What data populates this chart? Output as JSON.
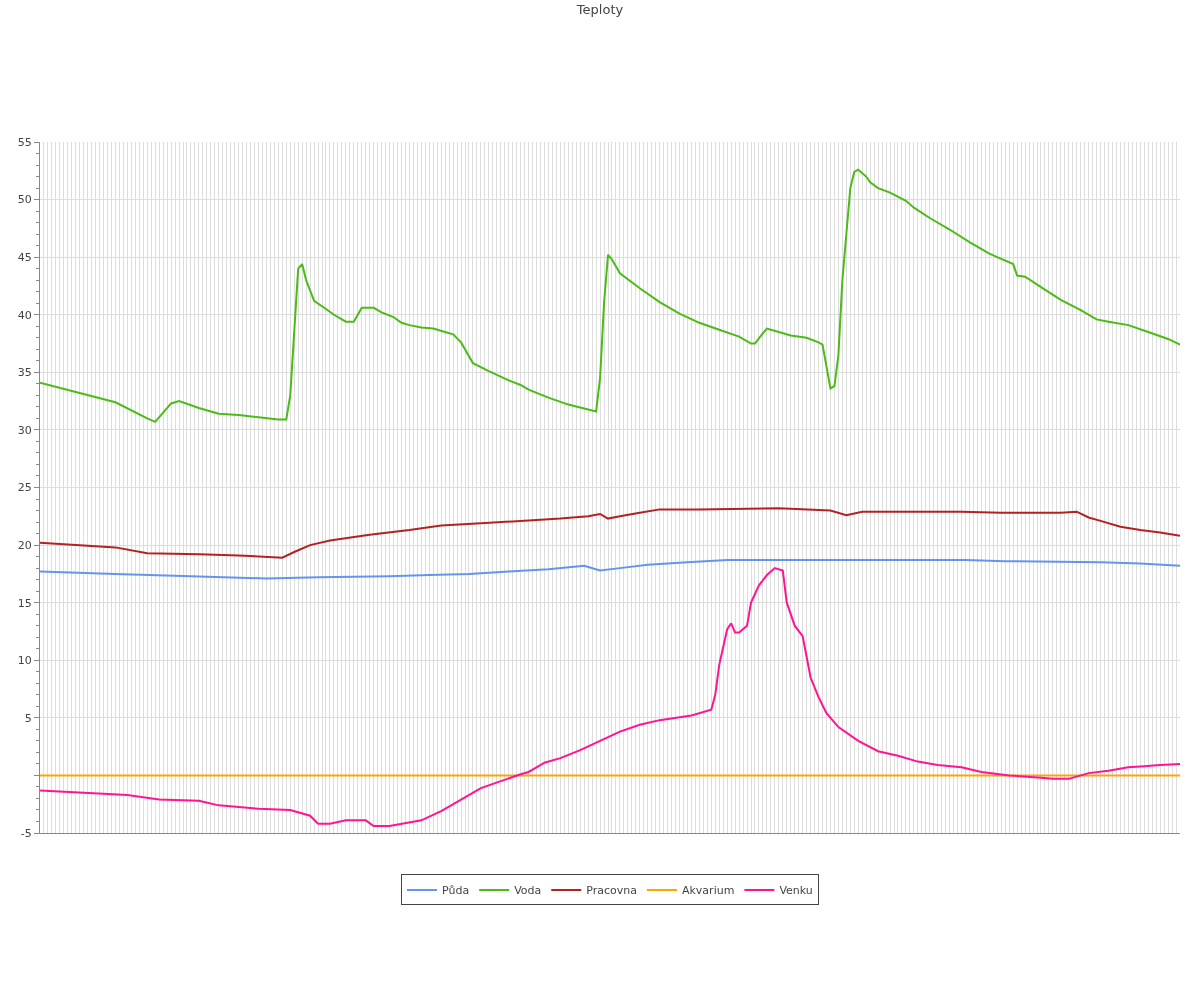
{
  "chart_data": {
    "type": "line",
    "title": "Teploty",
    "categories": [
      null,
      null,
      null,
      null,
      null,
      null,
      null,
      null,
      null,
      null,
      null,
      null,
      null,
      null,
      null,
      null,
      null,
      null,
      null,
      null,
      null,
      null,
      null,
      null,
      null,
      null,
      null,
      null,
      null,
      null,
      null,
      null,
      null,
      null,
      null,
      null,
      null,
      null,
      null,
      null,
      null,
      null,
      null,
      null,
      null,
      null,
      null,
      null,
      null,
      null,
      null,
      null,
      null,
      null,
      null,
      null,
      null,
      null,
      null,
      null,
      null,
      null,
      null,
      null,
      null,
      null,
      null,
      null,
      null,
      null,
      null,
      null,
      null,
      null,
      null,
      null,
      null,
      null,
      null,
      null,
      null,
      null,
      null,
      null,
      null,
      null,
      null,
      null,
      null,
      null,
      null,
      null,
      null,
      null,
      null,
      null,
      null,
      null,
      null,
      null,
      null,
      null,
      null,
      null,
      null,
      null,
      null,
      null,
      null,
      null,
      null,
      null,
      null,
      null,
      null,
      null,
      null,
      null,
      null,
      null,
      null,
      null,
      null,
      null,
      null,
      null,
      null,
      null,
      null,
      null,
      null,
      null,
      null,
      null,
      null,
      null,
      null,
      null,
      null,
      null,
      null,
      null,
      null,
      null,
      null,
      null,
      null,
      null,
      null,
      null,
      null,
      null,
      null,
      null,
      null,
      null,
      null,
      null,
      null,
      null,
      null,
      null,
      null,
      null,
      null,
      null,
      null,
      null,
      null,
      null,
      null,
      null,
      null,
      null,
      null,
      null,
      null,
      null,
      null,
      null,
      null,
      null,
      null,
      null,
      null,
      null,
      null,
      null,
      null,
      null,
      null,
      null,
      null,
      null,
      null,
      null,
      null,
      null,
      null,
      null,
      null,
      null,
      null,
      null,
      null,
      null,
      null,
      null,
      null,
      null,
      null,
      null,
      null,
      null,
      null,
      null,
      null,
      null,
      null,
      null,
      null,
      null,
      null,
      null,
      null,
      null,
      null,
      null,
      null,
      null,
      null,
      null,
      null,
      null,
      null,
      null,
      null,
      null,
      null,
      null,
      null,
      null,
      null,
      null,
      null,
      null,
      null,
      null,
      null,
      null,
      null,
      null,
      null,
      null,
      null,
      null,
      null,
      null,
      null,
      null,
      null,
      null,
      null,
      null,
      null,
      null,
      null,
      null,
      null,
      null,
      null,
      null,
      null,
      null,
      null,
      null,
      null,
      null,
      null,
      null,
      null,
      null,
      null,
      null,
      null,
      null,
      null,
      null
    ],
    "tick_labels": "y",
    "ylim": [
      -5,
      55
    ],
    "yticks": [
      -5,
      {
        "value": 0,
        "label": null
      },
      5,
      10,
      15,
      20,
      25,
      30,
      35,
      40,
      45,
      50,
      55
    ],
    "grid": true,
    "legend": "bottom",
    "marker": "none",
    "line_style": "solid",
    "series": [
      {
        "name": "Půda",
        "color": "#6495ed",
        "values": [
          17.7,
          null,
          null,
          null,
          null,
          null,
          null,
          null,
          null,
          null,
          null,
          null,
          null,
          null,
          null,
          null,
          null,
          null,
          null,
          17.5,
          null,
          null,
          null,
          null,
          null,
          null,
          null,
          null,
          null,
          null,
          null,
          null,
          null,
          null,
          null,
          null,
          null,
          null,
          17.3,
          null,
          null,
          null,
          null,
          null,
          null,
          null,
          null,
          null,
          null,
          null,
          null,
          null,
          null,
          null,
          null,
          null,
          null,
          17.1,
          null,
          null,
          null,
          null,
          null,
          null,
          null,
          null,
          null,
          null,
          null,
          null,
          17.2,
          null,
          null,
          null,
          null,
          null,
          null,
          null,
          null,
          null,
          null,
          null,
          null,
          null,
          null,
          null,
          null,
          null,
          17.3,
          null,
          null,
          null,
          null,
          null,
          null,
          null,
          null,
          null,
          17.4,
          null,
          null,
          null,
          null,
          null,
          null,
          null,
          null,
          null,
          17.5,
          null,
          null,
          null,
          null,
          null,
          null,
          null,
          null,
          null,
          17.7,
          null,
          null,
          null,
          null,
          null,
          null,
          null,
          null,
          null,
          17.9,
          null,
          null,
          null,
          null,
          null,
          null,
          null,
          null,
          18.2,
          null,
          null,
          null,
          17.8,
          null,
          null,
          null,
          null,
          18.0,
          null,
          null,
          null,
          null,
          null,
          null,
          18.3,
          null,
          null,
          null,
          null,
          null,
          null,
          null,
          null,
          null,
          18.5,
          null,
          null,
          null,
          null,
          null,
          null,
          null,
          null,
          null,
          18.7,
          null,
          null,
          null,
          null,
          null,
          null,
          null,
          null,
          null,
          null,
          null,
          null,
          null,
          null,
          null,
          null,
          null,
          null,
          null,
          null,
          null,
          null,
          null,
          null,
          null,
          null,
          null,
          null,
          null,
          null,
          null,
          null,
          null,
          null,
          null,
          null,
          null,
          null,
          null,
          null,
          null,
          null,
          null,
          null,
          null,
          null,
          null,
          null,
          null,
          null,
          null,
          null,
          null,
          null,
          null,
          null,
          null,
          null,
          null,
          18.7,
          null,
          null,
          null,
          null,
          null,
          null,
          null,
          null,
          null,
          18.6,
          null,
          null,
          null,
          null,
          null,
          null,
          null,
          null,
          null,
          null,
          null,
          null,
          null,
          null,
          null,
          null,
          null,
          null,
          null,
          null,
          null,
          null,
          null,
          18.5,
          null,
          null,
          null,
          null,
          null,
          null,
          null,
          null,
          null,
          18.4,
          null,
          null,
          null,
          null,
          null,
          null,
          null,
          null,
          null,
          18.2
        ]
      },
      {
        "name": "Voda",
        "color": "#4cbb17",
        "values": [
          34.1,
          null,
          null,
          null,
          null,
          null,
          null,
          null,
          null,
          33.3,
          null,
          null,
          null,
          null,
          null,
          null,
          null,
          null,
          null,
          32.4,
          null,
          null,
          null,
          null,
          null,
          null,
          null,
          31.0,
          null,
          30.7,
          null,
          null,
          null,
          32.3,
          null,
          32.5,
          null,
          null,
          null,
          null,
          31.9,
          null,
          null,
          null,
          null,
          31.4,
          null,
          null,
          null,
          null,
          31.3,
          null,
          null,
          null,
          null,
          31.1,
          null,
          null,
          null,
          null,
          30.9,
          null,
          30.9,
          33.0,
          null,
          44.0,
          44.4,
          43.0,
          null,
          41.2,
          null,
          null,
          40.5,
          null,
          40.0,
          null,
          null,
          39.4,
          null,
          39.4,
          null,
          40.6,
          null,
          null,
          40.6,
          null,
          40.2,
          null,
          null,
          39.8,
          null,
          39.3,
          null,
          39.1,
          null,
          null,
          38.9,
          null,
          null,
          38.8,
          null,
          null,
          38.5,
          null,
          38.3,
          null,
          37.6,
          null,
          36.4,
          35.8,
          null,
          null,
          null,
          35.1,
          null,
          null,
          null,
          null,
          34.3,
          null,
          null,
          33.9,
          null,
          33.5,
          null,
          null,
          null,
          null,
          32.8,
          null,
          null,
          null,
          null,
          32.2,
          null,
          null,
          null,
          null,
          null,
          null,
          31.6,
          34.5,
          41.0,
          45.2,
          44.8,
          null,
          43.6,
          null,
          null,
          null,
          null,
          42.3,
          null,
          null,
          null,
          null,
          41.1,
          null,
          null,
          null,
          null,
          40.1,
          null,
          null,
          null,
          null,
          39.3,
          null,
          null,
          null,
          null,
          38.7,
          null,
          null,
          null,
          null,
          38.1,
          null,
          null,
          37.5,
          37.5,
          null,
          38.4,
          38.8,
          null,
          null,
          38.5,
          null,
          null,
          38.2,
          null,
          null,
          null,
          38.0,
          null,
          null,
          37.6,
          37.4,
          null,
          33.6,
          33.8,
          36.5,
          43.0,
          null,
          51.0,
          52.4,
          52.6,
          null,
          52.0,
          51.5,
          null,
          51.0,
          null,
          null,
          50.6,
          null,
          null,
          null,
          49.9,
          null,
          49.3,
          null,
          null,
          null,
          48.4,
          null,
          null,
          null,
          null,
          47.4,
          null,
          null,
          null,
          null,
          46.3,
          null,
          null,
          null,
          null,
          45.3,
          null,
          null,
          null,
          null,
          null,
          44.4,
          43.4,
          null,
          43.3,
          null,
          null,
          null,
          42.4,
          null,
          null,
          null,
          null,
          41.3,
          null,
          null,
          null,
          null,
          40.4,
          null,
          null,
          null,
          39.6,
          null,
          null,
          39.4,
          null,
          null,
          null,
          null,
          39.1,
          null,
          null,
          null,
          null,
          38.5,
          null,
          null,
          null,
          null,
          37.9,
          null,
          null,
          37.4
        ]
      },
      {
        "name": "Pracovna",
        "color": "#b22222",
        "values": [
          20.2,
          null,
          null,
          null,
          null,
          null,
          null,
          null,
          null,
          null,
          null,
          null,
          null,
          null,
          null,
          null,
          null,
          null,
          null,
          19.8,
          null,
          null,
          null,
          null,
          null,
          null,
          null,
          19.3,
          null,
          null,
          null,
          null,
          null,
          null,
          null,
          null,
          null,
          null,
          null,
          null,
          19.2,
          null,
          null,
          null,
          null,
          null,
          null,
          null,
          null,
          null,
          19.1,
          null,
          null,
          null,
          null,
          null,
          null,
          null,
          null,
          null,
          null,
          18.9,
          null,
          null,
          19.4,
          null,
          null,
          null,
          20.0,
          null,
          null,
          null,
          null,
          20.4,
          null,
          null,
          null,
          null,
          null,
          null,
          null,
          null,
          null,
          20.9,
          null,
          null,
          null,
          null,
          null,
          null,
          null,
          null,
          null,
          21.3,
          null,
          null,
          null,
          null,
          null,
          null,
          null,
          21.7,
          null,
          null,
          null,
          null,
          null,
          null,
          null,
          null,
          null,
          21.9,
          null,
          null,
          null,
          null,
          null,
          null,
          null,
          null,
          null,
          22.1,
          null,
          null,
          null,
          null,
          null,
          null,
          null,
          null,
          null,
          22.3,
          null,
          null,
          null,
          null,
          null,
          null,
          22.5,
          null,
          null,
          22.7,
          null,
          22.3,
          null,
          null,
          22.5,
          null,
          null,
          null,
          null,
          22.8,
          null,
          null,
          null,
          null,
          23.1,
          null,
          null,
          null,
          null,
          null,
          null,
          null,
          null,
          null,
          23.1,
          null,
          null,
          null,
          null,
          null,
          null,
          null,
          null,
          null,
          null,
          null,
          null,
          null,
          null,
          null,
          null,
          null,
          null,
          null,
          23.2,
          null,
          null,
          null,
          null,
          null,
          null,
          null,
          null,
          null,
          null,
          null,
          null,
          23.0,
          null,
          null,
          null,
          22.6,
          null,
          null,
          null,
          22.9,
          null,
          null,
          null,
          null,
          null,
          null,
          null,
          null,
          null,
          22.9,
          null,
          null,
          null,
          null,
          null,
          null,
          null,
          null,
          null,
          null,
          null,
          null,
          null,
          null,
          22.9,
          null,
          null,
          null,
          null,
          null,
          null,
          null,
          null,
          null,
          22.8,
          null,
          null,
          null,
          null,
          null,
          null,
          22.8,
          null,
          null,
          null,
          null,
          null,
          null,
          null,
          22.8,
          null,
          null,
          null,
          22.9,
          null,
          null,
          22.4,
          null,
          null,
          22.1,
          null,
          null,
          null,
          null,
          21.6,
          null,
          null,
          null,
          null,
          21.3,
          null,
          null,
          null,
          null,
          21.1,
          null,
          null,
          null,
          null,
          20.8
        ]
      },
      {
        "name": "Akvarium",
        "color": "#ffa500",
        "values": [
          0,
          0,
          0,
          0,
          0,
          0,
          0,
          0,
          0,
          0,
          0,
          0,
          0,
          0,
          0,
          0,
          0,
          0,
          0,
          0,
          0,
          0,
          0,
          0,
          0,
          0,
          0,
          0,
          0,
          0,
          0,
          0,
          0,
          0,
          0,
          0,
          0,
          0,
          0,
          0,
          0,
          0,
          0,
          0,
          0,
          0,
          0,
          0,
          0,
          0,
          0,
          0,
          0,
          0,
          0,
          0,
          0,
          0,
          0,
          0,
          0,
          0,
          0,
          0,
          0,
          0,
          0,
          0,
          0,
          0,
          0,
          0,
          0,
          0,
          0,
          0,
          0,
          0,
          0,
          0,
          0,
          0,
          0,
          0,
          0,
          0,
          0,
          0,
          0,
          0,
          0,
          0,
          0,
          0,
          0,
          0,
          0,
          0,
          0,
          0,
          0,
          0,
          0,
          0,
          0,
          0,
          0,
          0,
          0,
          0,
          0,
          0,
          0,
          0,
          0,
          0,
          0,
          0,
          0,
          0,
          0,
          0,
          0,
          0,
          0,
          0,
          0,
          0,
          0,
          0,
          0,
          0,
          0,
          0,
          0,
          0,
          0,
          0,
          0,
          0,
          0,
          0,
          0,
          0,
          0,
          0,
          0,
          0,
          0,
          0,
          0,
          0,
          0,
          0,
          0,
          0,
          0,
          0,
          0,
          0,
          0,
          0,
          0,
          0,
          0,
          0,
          0,
          0,
          0,
          0,
          0,
          0,
          0,
          0,
          0,
          0,
          0,
          0,
          0,
          0,
          0,
          0,
          0,
          0,
          0,
          0,
          0,
          0,
          0,
          0,
          0,
          0,
          0,
          0,
          0,
          0,
          0,
          0,
          0,
          0,
          0,
          0,
          0,
          0,
          0,
          0,
          0,
          0,
          0,
          0,
          0,
          0,
          0,
          0,
          0,
          0,
          0,
          0,
          0,
          0,
          0,
          0,
          0,
          0,
          0,
          0,
          0,
          0,
          0,
          0,
          0,
          0,
          0,
          0,
          0,
          0,
          0,
          0,
          0,
          0,
          0,
          0,
          0,
          0,
          0,
          0,
          0,
          0,
          0,
          0,
          0,
          0,
          0,
          0,
          0,
          0,
          0,
          0,
          0,
          0,
          0,
          0,
          0,
          0,
          0,
          0,
          0,
          0,
          0,
          0,
          0,
          0,
          0,
          0,
          0,
          0,
          0,
          0,
          0,
          0,
          0,
          0,
          0,
          0,
          0,
          0,
          0,
          0
        ]
      },
      {
        "name": "Venku",
        "color": "#ff1493",
        "values": [
          -1.3,
          null,
          null,
          null,
          null,
          null,
          null,
          null,
          null,
          null,
          null,
          null,
          null,
          null,
          null,
          null,
          null,
          null,
          null,
          null,
          null,
          null,
          -1.7,
          null,
          null,
          null,
          null,
          null,
          null,
          null,
          -2.1,
          null,
          null,
          null,
          null,
          null,
          null,
          null,
          null,
          null,
          -2.2,
          null,
          null,
          null,
          null,
          -2.6,
          null,
          null,
          null,
          null,
          null,
          null,
          null,
          null,
          null,
          -2.9,
          null,
          null,
          null,
          null,
          null,
          null,
          null,
          -3.0,
          null,
          null,
          null,
          null,
          -3.5,
          null,
          -4.2,
          null,
          null,
          -4.2,
          null,
          null,
          null,
          -3.9,
          null,
          null,
          null,
          null,
          -3.9,
          null,
          -4.4,
          null,
          null,
          null,
          -4.4,
          null,
          null,
          null,
          null,
          null,
          null,
          null,
          -3.9,
          null,
          null,
          null,
          null,
          -3.1,
          null,
          null,
          null,
          null,
          -2.1,
          null,
          null,
          null,
          null,
          -1.1,
          null,
          null,
          null,
          null,
          -0.5,
          null,
          null,
          null,
          null,
          0.1,
          null,
          0.3,
          null,
          null,
          null,
          1.1,
          null,
          null,
          null,
          1.5,
          null,
          null,
          null,
          null,
          2.2,
          null,
          null,
          null,
          null,
          3.0,
          null,
          null,
          null,
          null,
          3.8,
          null,
          null,
          null,
          null,
          4.4,
          null,
          null,
          null,
          null,
          4.8,
          null,
          null,
          null,
          null,
          null,
          null,
          null,
          5.2,
          null,
          null,
          null,
          null,
          5.7,
          7.0,
          9.6,
          null,
          12.7,
          13.2,
          12.4,
          12.4,
          null,
          13.0,
          15.0,
          null,
          16.5,
          null,
          17.4,
          null,
          18.0,
          null,
          17.8,
          15.0,
          null,
          13.0,
          null,
          12.1,
          null,
          8.5,
          null,
          6.8,
          null,
          5.4,
          null,
          null,
          4.2,
          null,
          null,
          null,
          null,
          3.0,
          null,
          null,
          null,
          null,
          2.1,
          null,
          null,
          null,
          null,
          1.7,
          null,
          null,
          null,
          null,
          1.2,
          null,
          null,
          null,
          null,
          0.9,
          null,
          null,
          null,
          null,
          null,
          0.7,
          null,
          null,
          null,
          null,
          0.3,
          null,
          null,
          null,
          null,
          null,
          null,
          0.0,
          null,
          null,
          null,
          null,
          null,
          null,
          null,
          -0.2,
          null,
          null,
          -0.3,
          null,
          null,
          null,
          -0.3,
          null,
          null,
          null,
          null,
          0.2,
          null,
          null,
          null,
          null,
          0.4,
          null,
          null,
          null,
          null,
          0.7,
          null,
          null,
          null,
          0.8,
          null,
          null,
          null,
          0.9,
          null,
          null,
          null,
          null,
          1.0
        ]
      }
    ]
  }
}
